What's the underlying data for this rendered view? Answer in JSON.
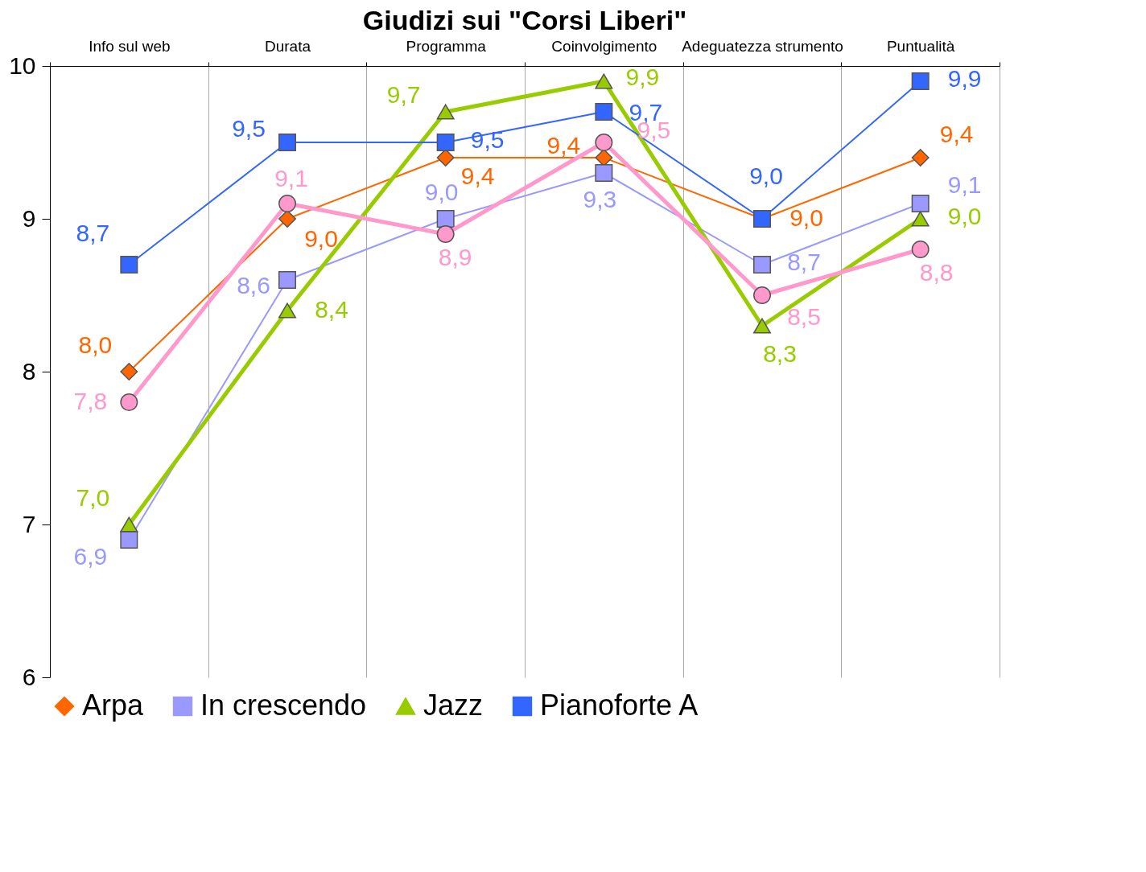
{
  "chart_data": {
    "type": "line",
    "title": "Giudizi sui \"Corsi Liberi\"",
    "categories": [
      "Info sul web",
      "Durata",
      "Programma",
      "Coinvolgimento",
      "Adeguatezza strumento",
      "Puntualità"
    ],
    "series": [
      {
        "name": "Arpa",
        "color": "#ff6600",
        "marker": "diamond",
        "values": [
          8.0,
          9.0,
          9.4,
          9.4,
          9.0,
          9.4
        ],
        "value_labels": [
          "8,0",
          "9,0",
          "9,4",
          "9,4",
          "9,0",
          "9,4"
        ]
      },
      {
        "name": "In crescendo",
        "color": "#9999ff",
        "marker": "square",
        "values": [
          6.9,
          8.6,
          9.0,
          9.3,
          8.7,
          9.1
        ],
        "value_labels": [
          "6,9",
          "8,6",
          "9,0",
          "9,3",
          "8,7",
          "9,1"
        ]
      },
      {
        "name": "Jazz",
        "color": "#99cc00",
        "marker": "triangle",
        "values": [
          7.0,
          8.4,
          9.7,
          9.9,
          8.3,
          9.0
        ],
        "value_labels": [
          "7,0",
          "8,4",
          "9,7",
          "9,9",
          "8,3",
          "9,0"
        ]
      },
      {
        "name": "Pianoforte A",
        "color": "#3366ff",
        "marker": "square",
        "values": [
          8.7,
          9.5,
          9.5,
          9.7,
          9.0,
          9.9
        ],
        "value_labels": [
          "8,7",
          "9,5",
          "9,5",
          "9,7",
          "9,0",
          "9,9"
        ]
      },
      {
        "color": "#ff99cc",
        "marker": "circle",
        "values": [
          7.8,
          9.1,
          8.9,
          9.5,
          8.5,
          8.8
        ],
        "value_labels": [
          "7,8",
          "9,1",
          "8,9",
          "9,5",
          "8,5",
          "8,8"
        ]
      }
    ],
    "ylim": [
      6,
      10
    ],
    "yticks": [
      6,
      7,
      8,
      9,
      10
    ],
    "grid": "x",
    "legend": "bottom"
  }
}
